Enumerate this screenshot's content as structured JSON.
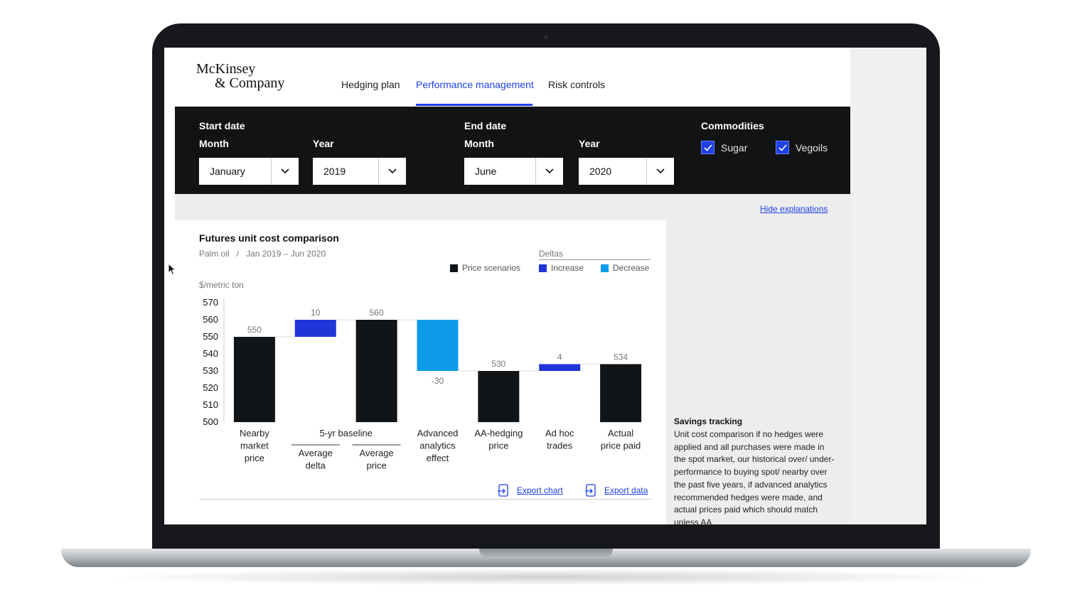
{
  "brand": {
    "line1": "McKinsey",
    "line2": "& Company"
  },
  "nav": {
    "tabs": [
      {
        "label": "Hedging plan"
      },
      {
        "label": "Performance management"
      },
      {
        "label": "Risk controls"
      }
    ],
    "active": "Performance management"
  },
  "filters": {
    "start": {
      "label": "Start date",
      "month_label": "Month",
      "month": "January",
      "year_label": "Year",
      "year": "2019"
    },
    "end": {
      "label": "End date",
      "month_label": "Month",
      "month": "June",
      "year_label": "Year",
      "year": "2020"
    },
    "commodities": {
      "label": "Commodities",
      "items": [
        {
          "label": "Sugar",
          "checked": true
        },
        {
          "label": "Vegoils",
          "checked": true
        }
      ]
    }
  },
  "hide_explanations": "Hide explanations",
  "card": {
    "title": "Futures unit cost comparison",
    "subtitle": "Palm oil   /   Jan 2019 – Jun 2020",
    "legend": {
      "price": "Price scenarios",
      "deltas_label": "Deltas",
      "increase": "Increase",
      "decrease": "Decrease"
    },
    "unit": "$/metric ton",
    "export_chart": "Export chart",
    "export_data": "Export data"
  },
  "chart_data": {
    "type": "bar",
    "subtype": "waterfall",
    "ylabel": "$/metric ton",
    "ylim": [
      500,
      570
    ],
    "yticks": [
      500,
      510,
      520,
      530,
      540,
      550,
      560,
      570
    ],
    "colors": {
      "price": "#111518",
      "increase": "#1f35d8",
      "decrease": "#0d9be8"
    },
    "group_label": "5-yr baseline",
    "bars": [
      {
        "category": [
          "Nearby",
          "market",
          "price"
        ],
        "kind": "price",
        "start": 500,
        "end": 550,
        "label": "550"
      },
      {
        "category": [
          "Average",
          "delta"
        ],
        "kind": "increase",
        "start": 550,
        "end": 560,
        "label": "10"
      },
      {
        "category": [
          "Average",
          "price"
        ],
        "kind": "price",
        "start": 500,
        "end": 560,
        "label": "560"
      },
      {
        "category": [
          "Advanced",
          "analytics",
          "effect"
        ],
        "kind": "decrease",
        "start": 560,
        "end": 530,
        "label": "-30"
      },
      {
        "category": [
          "AA-hedging",
          "price"
        ],
        "kind": "price",
        "start": 500,
        "end": 530,
        "label": "530"
      },
      {
        "category": [
          "Ad hoc",
          "trades"
        ],
        "kind": "increase",
        "start": 530,
        "end": 534,
        "label": "4"
      },
      {
        "category": [
          "Actual",
          "price paid"
        ],
        "kind": "price",
        "start": 500,
        "end": 534,
        "label": "534"
      }
    ]
  },
  "savings": {
    "title": "Savings tracking",
    "text": "Unit cost comparison if no hedges were applied and all purchases were made in the spot market, our historical over/ under-performance to buying spot/ nearby over the past five years, if advanced analytics recommended hedges were made, and actual prices paid which should match unless AA"
  }
}
